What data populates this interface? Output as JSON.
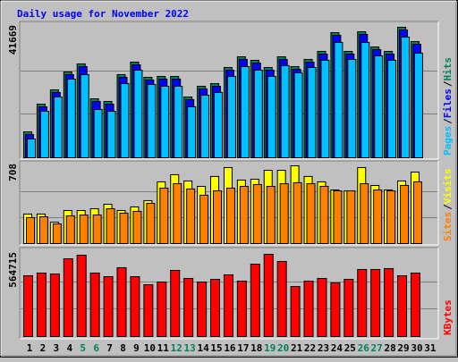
{
  "title": "Daily usage for November 2022",
  "chart_data": [
    {
      "type": "bar",
      "legend_separator": "/",
      "ylim": [
        0,
        41669
      ],
      "series": [
        {
          "name": "Hits",
          "color": "#00805c",
          "values": [
            8277,
            17124,
            21690,
            27398,
            29967,
            18836,
            17980,
            26542,
            30538,
            25686,
            25971,
            25971,
            19407,
            22832,
            23688,
            28825,
            32250,
            31109,
            28825,
            32250,
            29111,
            31394,
            33963,
            39956,
            33963,
            40241,
            35390,
            33963,
            41669,
            37102,
            null
          ]
        },
        {
          "name": "Files",
          "color": "#0000ff",
          "values": [
            7420,
            16270,
            20830,
            26540,
            29110,
            17980,
            17120,
            25680,
            29680,
            24830,
            25110,
            25110,
            18550,
            21970,
            22830,
            27970,
            31390,
            30250,
            27970,
            31390,
            28250,
            30540,
            33100,
            39100,
            33100,
            39390,
            34530,
            33100,
            40810,
            36240,
            null
          ]
        },
        {
          "name": "Pages",
          "color": "#00c0ff",
          "values": [
            5990,
            14840,
            19410,
            25110,
            26540,
            15410,
            14840,
            23690,
            27970,
            23400,
            22830,
            22830,
            16270,
            19980,
            20830,
            25970,
            29110,
            27970,
            25970,
            29400,
            27110,
            28820,
            31110,
            36820,
            31390,
            36820,
            32530,
            31110,
            38530,
            33390,
            null
          ]
        }
      ]
    },
    {
      "type": "bar",
      "legend_separator": "/",
      "ylim": [
        0,
        708
      ],
      "series": [
        {
          "name": "Visits",
          "color": "#ffff00",
          "values": [
            269,
            269,
            195,
            301,
            301,
            317,
            358,
            301,
            334,
            391,
            562,
            627,
            570,
            521,
            611,
            692,
            578,
            586,
            667,
            667,
            708,
            611,
            562,
            488,
            480,
            692,
            529,
            488,
            570,
            651,
            null
          ]
        },
        {
          "name": "Sites",
          "color": "#ff8000",
          "values": [
            236,
            244,
            179,
            252,
            260,
            260,
            317,
            277,
            293,
            366,
            505,
            545,
            497,
            440,
            480,
            505,
            521,
            537,
            521,
            545,
            554,
            545,
            521,
            480,
            480,
            545,
            488,
            480,
            529,
            562,
            null
          ]
        }
      ]
    },
    {
      "type": "bar",
      "ylim": [
        0,
        564715
      ],
      "categories": [
        "1",
        "2",
        "3",
        "4",
        "5",
        "6",
        "7",
        "8",
        "9",
        "10",
        "11",
        "12",
        "13",
        "14",
        "15",
        "16",
        "17",
        "18",
        "19",
        "20",
        "21",
        "22",
        "23",
        "24",
        "25",
        "26",
        "27",
        "28",
        "29",
        "30",
        "31"
      ],
      "category_colors": [
        "#000000",
        "#000000",
        "#000000",
        "#000000",
        "#00805c",
        "#00805c",
        "#000000",
        "#000000",
        "#000000",
        "#000000",
        "#000000",
        "#00805c",
        "#00805c",
        "#000000",
        "#000000",
        "#000000",
        "#000000",
        "#000000",
        "#00805c",
        "#00805c",
        "#000000",
        "#000000",
        "#000000",
        "#000000",
        "#000000",
        "#00805c",
        "#00805c",
        "#000000",
        "#000000",
        "#000000",
        "#000000"
      ],
      "series": [
        {
          "name": "KBytes",
          "color": "#ff0000",
          "values": [
            417400,
            435800,
            429700,
            534000,
            558600,
            435800,
            411200,
            472600,
            411200,
            356000,
            374400,
            454200,
            399000,
            374400,
            392800,
            423500,
            380600,
            497200,
            564715,
            515600,
            343700,
            380600,
            399000,
            368300,
            392800,
            460400,
            460400,
            466500,
            417400,
            435800,
            null
          ]
        }
      ]
    }
  ]
}
